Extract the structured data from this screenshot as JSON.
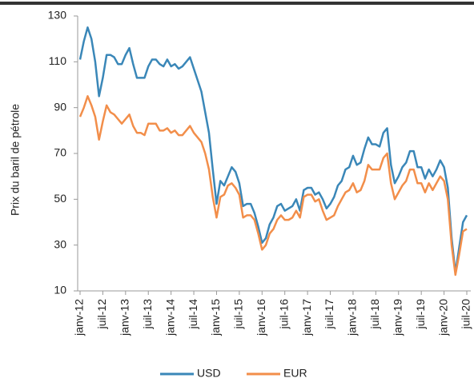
{
  "chart_data": {
    "type": "line",
    "y_label": "Prix du baril de pétrole",
    "categories": [
      "janv-12",
      null,
      null,
      null,
      null,
      null,
      "juil-12",
      null,
      null,
      null,
      null,
      null,
      "janv-13",
      null,
      null,
      null,
      null,
      null,
      "juil-13",
      null,
      null,
      null,
      null,
      null,
      "janv-14",
      null,
      null,
      null,
      null,
      null,
      "juil-14",
      null,
      null,
      null,
      null,
      null,
      "janv-15",
      null,
      null,
      null,
      null,
      null,
      "juil-15",
      null,
      null,
      null,
      null,
      null,
      "janv-16",
      null,
      null,
      null,
      null,
      null,
      "juil-16",
      null,
      null,
      null,
      null,
      null,
      "janv-17",
      null,
      null,
      null,
      null,
      null,
      "juil-17",
      null,
      null,
      null,
      null,
      null,
      "janv-18",
      null,
      null,
      null,
      null,
      null,
      "juil-18",
      null,
      null,
      null,
      null,
      null,
      "janv-19",
      null,
      null,
      null,
      null,
      null,
      "juil-19",
      null,
      null,
      null,
      null,
      null,
      "janv-20",
      null,
      null,
      null,
      null,
      null,
      "juil-20"
    ],
    "series": [
      {
        "name": "USD",
        "color": "#3a87b8",
        "values": [
          111,
          119,
          125,
          120,
          110,
          95,
          103,
          113,
          113,
          112,
          109,
          109,
          113,
          116,
          109,
          103,
          103,
          103,
          108,
          111,
          111,
          109,
          108,
          111,
          108,
          109,
          107,
          108,
          110,
          112,
          107,
          102,
          97,
          88,
          79,
          63,
          48,
          58,
          56,
          60,
          64,
          62,
          57,
          47,
          48,
          48,
          44,
          38,
          31,
          33,
          39,
          42,
          47,
          48,
          45,
          46,
          47,
          50,
          45,
          54,
          55,
          55,
          52,
          53,
          50,
          46,
          48,
          51,
          56,
          58,
          63,
          64,
          69,
          65,
          66,
          72,
          77,
          74,
          74,
          73,
          79,
          81,
          65,
          57,
          60,
          64,
          66,
          71,
          71,
          64,
          64,
          59,
          63,
          60,
          63,
          67,
          64,
          55,
          33,
          18,
          29,
          40,
          43
        ]
      },
      {
        "name": "EUR",
        "color": "#f28e4a",
        "values": [
          86,
          90,
          95,
          91,
          86,
          76,
          84,
          91,
          88,
          87,
          85,
          83,
          85,
          87,
          82,
          79,
          79,
          78,
          83,
          83,
          83,
          80,
          80,
          81,
          79,
          80,
          78,
          78,
          80,
          82,
          79,
          77,
          75,
          70,
          63,
          51,
          42,
          51,
          52,
          56,
          57,
          55,
          52,
          42,
          43,
          43,
          41,
          35,
          28,
          30,
          35,
          37,
          41,
          43,
          41,
          41,
          42,
          45,
          42,
          51,
          52,
          52,
          49,
          50,
          45,
          41,
          42,
          43,
          47,
          50,
          53,
          54,
          57,
          53,
          54,
          58,
          65,
          63,
          63,
          63,
          68,
          70,
          57,
          50,
          53,
          56,
          58,
          63,
          63,
          57,
          57,
          53,
          57,
          54,
          57,
          60,
          58,
          50,
          30,
          17,
          26,
          36,
          37
        ]
      }
    ],
    "ylim": [
      10,
      130
    ],
    "yticks": [
      10,
      30,
      50,
      70,
      90,
      110,
      130
    ]
  }
}
